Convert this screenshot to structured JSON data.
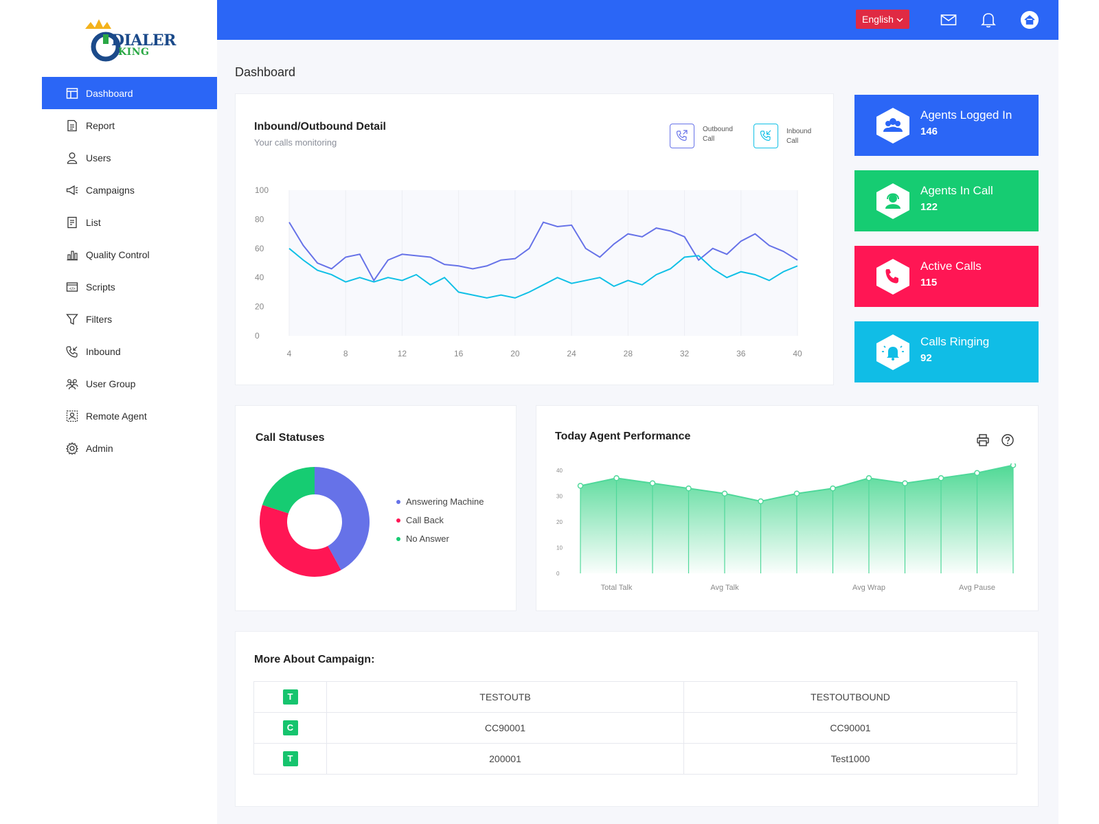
{
  "brand": {
    "logo_text": "DIALER",
    "logo_sub": "KING"
  },
  "colors": {
    "primary": "#2b66f6",
    "green": "#16c46e",
    "red": "#ff1654",
    "cyan": "#10c0e6",
    "purple": "#6672e8"
  },
  "sidebar": {
    "items": [
      {
        "label": "Dashboard",
        "icon": "dashboard-icon",
        "active": true
      },
      {
        "label": "Report",
        "icon": "report-icon"
      },
      {
        "label": "Users",
        "icon": "user-icon"
      },
      {
        "label": "Campaigns",
        "icon": "megaphone-icon"
      },
      {
        "label": "List",
        "icon": "list-icon"
      },
      {
        "label": "Quality Control",
        "icon": "chart-icon"
      },
      {
        "label": "Scripts",
        "icon": "script-icon"
      },
      {
        "label": "Filters",
        "icon": "filter-icon"
      },
      {
        "label": "Inbound",
        "icon": "inbound-phone-icon"
      },
      {
        "label": "User Group",
        "icon": "user-group-icon"
      },
      {
        "label": "Remote Agent",
        "icon": "remote-agent-icon"
      },
      {
        "label": "Admin",
        "icon": "gear-icon"
      }
    ]
  },
  "topbar": {
    "language": "English"
  },
  "page": {
    "title": "Dashboard"
  },
  "inbound_outbound": {
    "title": "Inbound/Outbound Detail",
    "subtitle": "Your calls monitoring",
    "legend_outbound_l1": "Outbound",
    "legend_outbound_l2": "Call",
    "legend_inbound_l1": "Inbound",
    "legend_inbound_l2": "Call"
  },
  "stats": [
    {
      "label": "Agents Logged In",
      "value": "146",
      "color": "#2b66f6",
      "icon": "users-icon"
    },
    {
      "label": "Agents In Call",
      "value": "122",
      "color": "#16cc72",
      "icon": "agent-headset-icon"
    },
    {
      "label": "Active Calls",
      "value": "115",
      "color": "#ff1654",
      "icon": "phone-icon"
    },
    {
      "label": "Calls Ringing",
      "value": "92",
      "color": "#10bde6",
      "icon": "bell-ring-icon"
    }
  ],
  "call_statuses": {
    "title": "Call Statuses",
    "legend": [
      {
        "label": "Answering Machine",
        "color": "#6672e8"
      },
      {
        "label": "Call Back",
        "color": "#ff1654"
      },
      {
        "label": "No Answer",
        "color": "#16cc72"
      }
    ]
  },
  "agent_perf": {
    "title": "Today Agent Performance"
  },
  "campaign": {
    "title": "More About Campaign:",
    "rows": [
      {
        "badge": "T",
        "col1": "TESTOUTB",
        "col2": "TESTOUTBOUND"
      },
      {
        "badge": "C",
        "col1": "CC90001",
        "col2": "CC90001"
      },
      {
        "badge": "T",
        "col1": "200001",
        "col2": "Test1000"
      }
    ]
  },
  "chart_data": [
    {
      "type": "line",
      "x": [
        4,
        5,
        6,
        7,
        8,
        9,
        10,
        11,
        12,
        13,
        14,
        15,
        16,
        17,
        18,
        19,
        20,
        21,
        22,
        23,
        24,
        25,
        26,
        27,
        28,
        29,
        30,
        31,
        32,
        33,
        34,
        35,
        36,
        37,
        38,
        39,
        40
      ],
      "series": [
        {
          "color": "#6672e8",
          "values": [
            78,
            62,
            50,
            46,
            54,
            56,
            38,
            52,
            56,
            55,
            54,
            49,
            48,
            46,
            48,
            52,
            53,
            60,
            78,
            75,
            76,
            60,
            54,
            63,
            70,
            68,
            74,
            72,
            68,
            52,
            60,
            56,
            65,
            70,
            62,
            58,
            52
          ]
        },
        {
          "color": "#10c0e6",
          "values": [
            60,
            52,
            45,
            42,
            37,
            40,
            37,
            40,
            38,
            42,
            35,
            40,
            30,
            28,
            26,
            28,
            26,
            30,
            35,
            40,
            36,
            38,
            40,
            34,
            38,
            35,
            42,
            46,
            54,
            55,
            46,
            40,
            44,
            42,
            38,
            44,
            48
          ]
        }
      ],
      "ylim": [
        0,
        100
      ],
      "yticks": [
        0,
        20,
        40,
        60,
        80,
        100
      ],
      "xticks": [
        4,
        8,
        12,
        16,
        20,
        24,
        28,
        32,
        36,
        40
      ],
      "grid": true
    },
    {
      "type": "pie",
      "categories": [
        "Answering Machine",
        "Call Back",
        "No Answer"
      ],
      "values": [
        42,
        38,
        20
      ]
    },
    {
      "type": "area",
      "categories": [
        "",
        "Total Talk",
        "",
        "",
        "Avg Talk",
        "",
        "",
        "",
        "Avg Wrap",
        "",
        "",
        "Avg Pause",
        ""
      ],
      "values": [
        34,
        37,
        35,
        33,
        31,
        28,
        31,
        33,
        37,
        35,
        37,
        39,
        42
      ],
      "ylim": [
        0,
        40
      ],
      "yticks": [
        0,
        10,
        20,
        30,
        40
      ]
    }
  ]
}
